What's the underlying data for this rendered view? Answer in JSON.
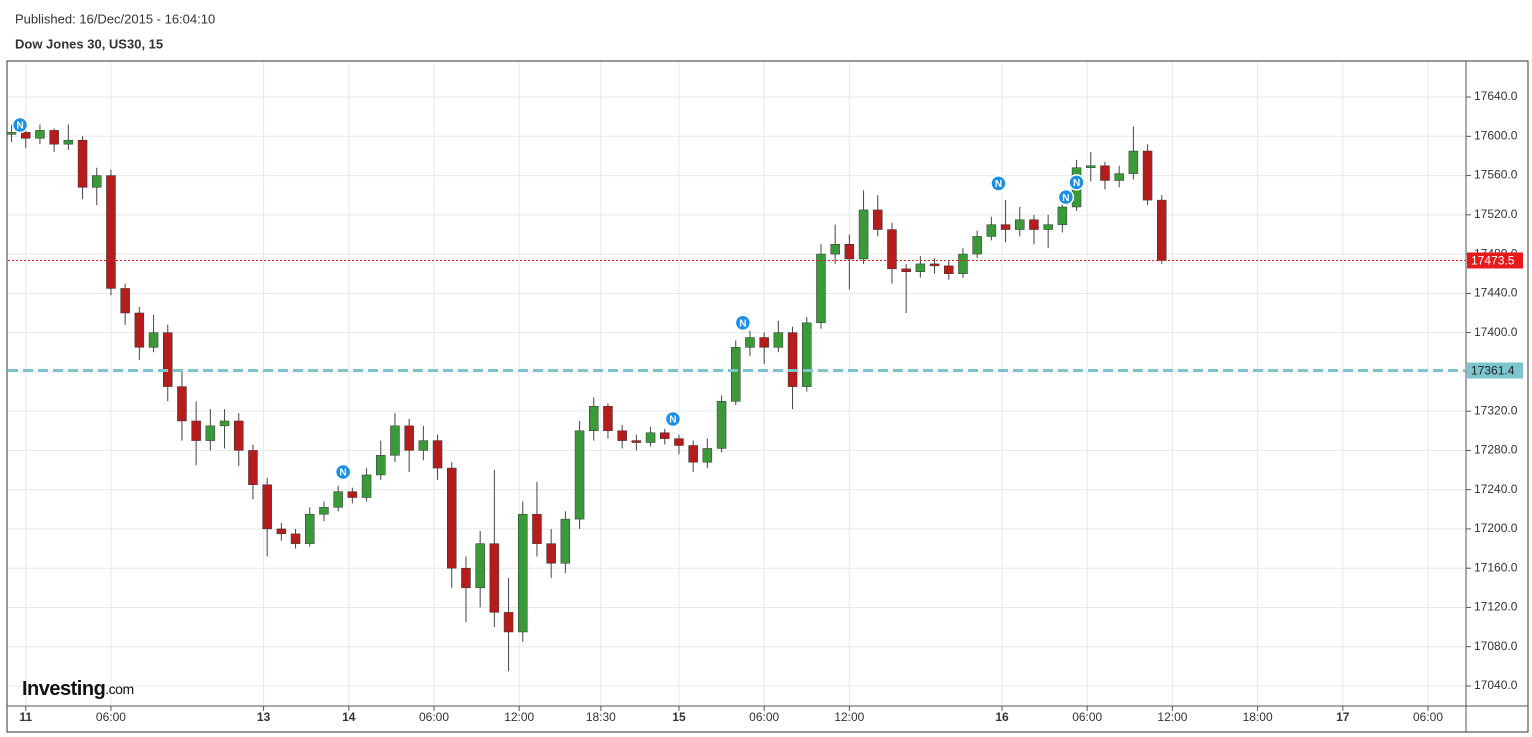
{
  "chart_data": {
    "type": "candlestick",
    "title": "Dow Jones 30, US30, 15",
    "subtitle": "Published: 16/Dec/2015 - 16:04:10",
    "x": [
      1,
      5,
      9,
      13,
      17,
      21,
      25,
      29,
      33,
      37,
      41,
      45,
      49,
      53,
      57,
      61,
      65,
      69,
      73,
      77,
      81,
      85,
      89,
      93,
      97,
      101,
      105,
      109,
      113,
      117,
      121,
      125,
      129,
      133,
      137,
      141,
      145,
      149,
      153,
      157,
      161,
      165,
      169,
      173,
      177,
      181,
      185,
      189,
      193,
      197,
      201,
      205,
      209,
      213,
      217,
      221,
      225,
      229,
      233,
      237,
      241,
      245,
      249,
      253,
      257,
      261,
      265,
      269,
      273,
      277,
      281,
      285,
      289,
      293,
      297,
      301,
      305,
      309,
      313,
      317,
      321,
      325
    ],
    "open": [
      17602,
      17604,
      17598,
      17606,
      17592,
      17596,
      17548,
      17560,
      17445,
      17420,
      17385,
      17400,
      17345,
      17310,
      17290,
      17305,
      17310,
      17280,
      17245,
      17200,
      17195,
      17185,
      17215,
      17222,
      17238,
      17232,
      17255,
      17275,
      17305,
      17280,
      17290,
      17262,
      17160,
      17140,
      17185,
      17115,
      17095,
      17215,
      17185,
      17165,
      17210,
      17300,
      17325,
      17300,
      17290,
      17288,
      17298,
      17292,
      17285,
      17268,
      17282,
      17330,
      17385,
      17395,
      17385,
      17400,
      17345,
      17410,
      17480,
      17490,
      17475,
      17525,
      17505,
      17465,
      17462,
      17470,
      17468,
      17460,
      17480,
      17498,
      17510,
      17505,
      17515,
      17505,
      17510,
      17528,
      17568,
      17570,
      17555,
      17562,
      17585,
      17535
    ],
    "high": [
      17612,
      17608,
      17612,
      17608,
      17612,
      17600,
      17568,
      17566,
      17450,
      17426,
      17418,
      17408,
      17360,
      17330,
      17322,
      17322,
      17318,
      17286,
      17252,
      17206,
      17200,
      17222,
      17228,
      17244,
      17242,
      17262,
      17290,
      17318,
      17312,
      17305,
      17296,
      17268,
      17172,
      17198,
      17260,
      17150,
      17228,
      17248,
      17200,
      17218,
      17310,
      17334,
      17328,
      17306,
      17296,
      17304,
      17302,
      17296,
      17290,
      17292,
      17336,
      17392,
      17402,
      17400,
      17412,
      17406,
      17416,
      17490,
      17510,
      17500,
      17545,
      17540,
      17512,
      17470,
      17478,
      17476,
      17474,
      17486,
      17504,
      17518,
      17535,
      17528,
      17520,
      17520,
      17538,
      17576,
      17584,
      17574,
      17570,
      17610,
      17592,
      17540
    ],
    "low": [
      17594,
      17588,
      17592,
      17584,
      17586,
      17536,
      17530,
      17438,
      17408,
      17372,
      17380,
      17330,
      17290,
      17265,
      17280,
      17282,
      17264,
      17230,
      17172,
      17188,
      17180,
      17182,
      17208,
      17218,
      17226,
      17228,
      17250,
      17268,
      17258,
      17270,
      17250,
      17140,
      17105,
      17120,
      17100,
      17055,
      17085,
      17172,
      17150,
      17155,
      17200,
      17290,
      17292,
      17282,
      17280,
      17284,
      17286,
      17276,
      17258,
      17262,
      17278,
      17326,
      17376,
      17368,
      17380,
      17322,
      17340,
      17404,
      17470,
      17444,
      17470,
      17498,
      17450,
      17420,
      17456,
      17460,
      17454,
      17456,
      17476,
      17494,
      17492,
      17498,
      17490,
      17486,
      17502,
      17524,
      17554,
      17546,
      17548,
      17556,
      17530,
      17470
    ],
    "close": [
      17604,
      17598,
      17606,
      17592,
      17596,
      17548,
      17560,
      17445,
      17420,
      17385,
      17400,
      17345,
      17310,
      17290,
      17305,
      17310,
      17280,
      17245,
      17200,
      17195,
      17185,
      17215,
      17222,
      17238,
      17232,
      17255,
      17275,
      17305,
      17280,
      17290,
      17262,
      17160,
      17140,
      17185,
      17115,
      17095,
      17215,
      17185,
      17165,
      17210,
      17300,
      17325,
      17300,
      17290,
      17288,
      17298,
      17292,
      17285,
      17268,
      17282,
      17330,
      17385,
      17395,
      17385,
      17400,
      17345,
      17410,
      17480,
      17490,
      17475,
      17525,
      17505,
      17465,
      17462,
      17470,
      17468,
      17460,
      17480,
      17498,
      17510,
      17505,
      17515,
      17505,
      17510,
      17528,
      17568,
      17570,
      17555,
      17562,
      17585,
      17535,
      17473.5
    ],
    "up_color": "#3a9a3a",
    "down_color": "#b71c1c",
    "xlim": [
      0,
      410.7
    ],
    "xticks": [
      {
        "value": 5,
        "label": "11"
      },
      {
        "value": 29,
        "label": "06:00"
      },
      {
        "value": 72,
        "label": "13"
      },
      {
        "value": 96,
        "label": "14"
      },
      {
        "value": 120,
        "label": "06:00"
      },
      {
        "value": 144,
        "label": "12:00"
      },
      {
        "value": 167,
        "label": "18:30"
      },
      {
        "value": 189,
        "label": "15"
      },
      {
        "value": 213,
        "label": "06:00"
      },
      {
        "value": 237,
        "label": "12:00"
      },
      {
        "value": 280,
        "label": "16"
      },
      {
        "value": 304,
        "label": "06:00"
      },
      {
        "value": 328,
        "label": "12:00"
      },
      {
        "value": 352,
        "label": "18:00"
      },
      {
        "value": 376,
        "label": "17"
      },
      {
        "value": 400,
        "label": "06:00"
      }
    ],
    "ylim": [
      17019.6,
      17675.7
    ],
    "yticks": [
      {
        "value": 17040,
        "label": "17040.0"
      },
      {
        "value": 17080,
        "label": "17080.0"
      },
      {
        "value": 17120,
        "label": "17120.0"
      },
      {
        "value": 17160,
        "label": "17160.0"
      },
      {
        "value": 17200,
        "label": "17200.0"
      },
      {
        "value": 17240,
        "label": "17240.0"
      },
      {
        "value": 17280,
        "label": "17280.0"
      },
      {
        "value": 17320,
        "label": "17320.0"
      },
      {
        "value": 17360,
        "label": "17360.0"
      },
      {
        "value": 17400,
        "label": "17400.0"
      },
      {
        "value": 17440,
        "label": "17440.0"
      },
      {
        "value": 17480,
        "label": "17480.0"
      },
      {
        "value": 17520,
        "label": "17520.0"
      },
      {
        "value": 17560,
        "label": "17560.0"
      },
      {
        "value": 17600,
        "label": "17600.0"
      },
      {
        "value": 17640,
        "label": "17640.0"
      }
    ],
    "grid": true,
    "price_lines": [
      {
        "value": 17473.5,
        "color": "#e8191b",
        "style": "dotted"
      },
      {
        "value": 17361.4,
        "color": "#7cc5cf",
        "style": "dashed"
      }
    ],
    "news": {
      "label": "N",
      "x": [
        3.4,
        94.4,
        187.3,
        207,
        279,
        298,
        301
      ],
      "y": [
        17611.5,
        17258,
        17312,
        17410,
        17552,
        17538,
        17553
      ]
    }
  },
  "logo": {
    "main": "Investing",
    "suffix": ".com"
  }
}
